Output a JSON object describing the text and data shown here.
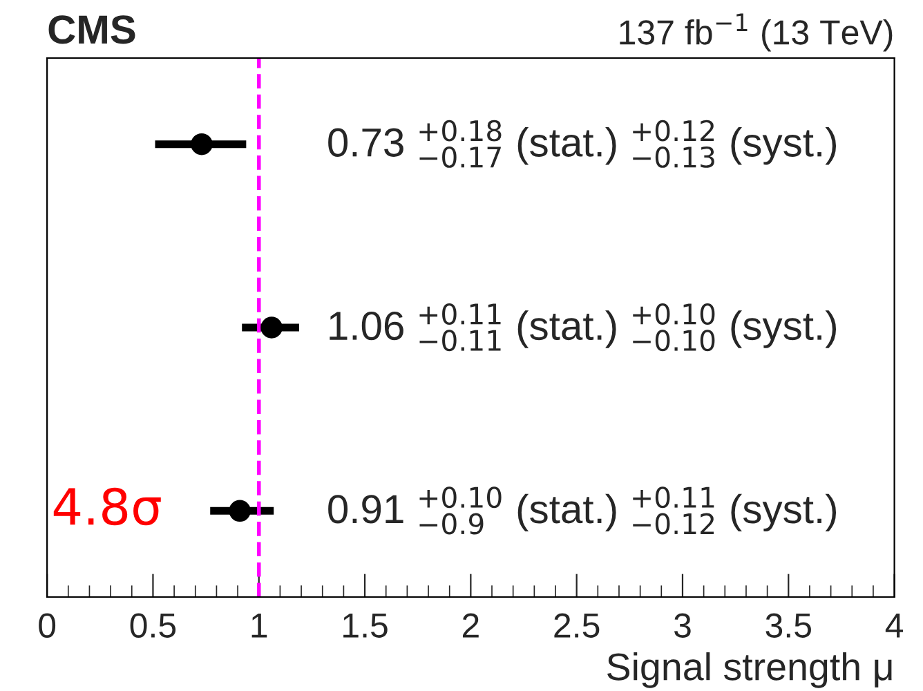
{
  "chart_data": {
    "type": "scatter",
    "orientation": "horizontal",
    "title": "CMS",
    "subtitle": "137 fb$^{−1}$ (13 TeV)",
    "xlabel": "Signal strength μ",
    "categories": [
      null,
      null,
      null
    ],
    "series": [
      {
        "color": "#000000",
        "values": [
          0.73,
          1.06,
          0.91
        ],
        "errors": [
          [
            0.51,
            0.94
          ],
          [
            0.92,
            1.19
          ],
          [
            0.77,
            1.07
          ]
        ]
      }
    ],
    "xlim": [
      0,
      4
    ],
    "xticks": [
      0,
      0.5,
      1,
      1.5,
      2,
      2.5,
      3,
      3.5,
      4
    ],
    "tick_labels": "x",
    "grid": false,
    "legend": false,
    "marker": "circle",
    "ref_lines": [
      {
        "axis": "x",
        "value": 1,
        "color": "#ff00ff",
        "line_style": "dashed"
      }
    ],
    "annotations": [
      "0.73 $^{+0.18}$$_{−0.17}$ (stat.) $^{+0.12}$$_{−0.13}$ (syst.)",
      "1.06 $^{+0.11}$$_{−0.11}$ (stat.) $^{+0.10}$$_{−0.10}$ (syst.)",
      "0.91 $^{+0.10}$$_{−0.9}$ (stat.) $^{+0.11}$$_{−0.12}$ (syst.)",
      "4.8σ"
    ]
  }
}
